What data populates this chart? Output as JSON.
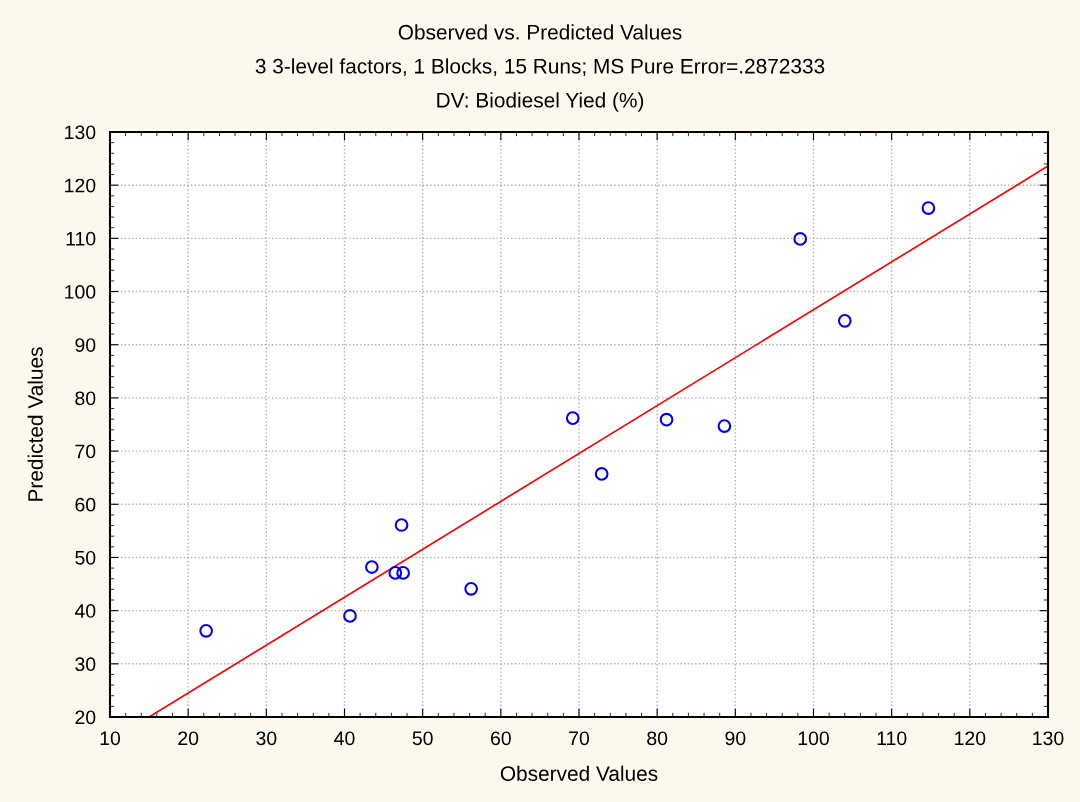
{
  "chart_data": {
    "type": "scatter",
    "title": "Observed vs. Predicted Values",
    "subtitle": "3 3-level factors, 1 Blocks, 15 Runs; MS Pure Error=.2872333",
    "annotations": [
      "DV: Biodiesel Yied (%)"
    ],
    "xlabel": "Observed Values",
    "ylabel": "Predicted Values",
    "series": [
      {
        "color": "#0000ff",
        "marker": "circle",
        "x": [
          22.3,
          40.7,
          43.5,
          46.5,
          47.5,
          47.3,
          56.2,
          69.2,
          72.9,
          81.2,
          88.6,
          98.3,
          104.0,
          114.7
        ],
        "values": [
          36.2,
          39.0,
          48.2,
          47.1,
          47.1,
          56.1,
          44.1,
          76.2,
          65.7,
          75.9,
          74.7,
          109.9,
          94.5,
          115.7
        ]
      },
      {
        "type": "line",
        "color": "#ff0000",
        "marker": "none",
        "line_style": "solid",
        "x": [
          15,
          130
        ],
        "values": [
          20,
          123.6
        ]
      }
    ],
    "xlim": [
      10,
      130
    ],
    "xticks": [
      10,
      20,
      30,
      40,
      50,
      60,
      70,
      80,
      90,
      100,
      110,
      120,
      130
    ],
    "ylim": [
      20,
      130
    ],
    "yticks": [
      20,
      30,
      40,
      50,
      60,
      70,
      80,
      90,
      100,
      110,
      120,
      130
    ],
    "grid": true,
    "legend": false
  }
}
